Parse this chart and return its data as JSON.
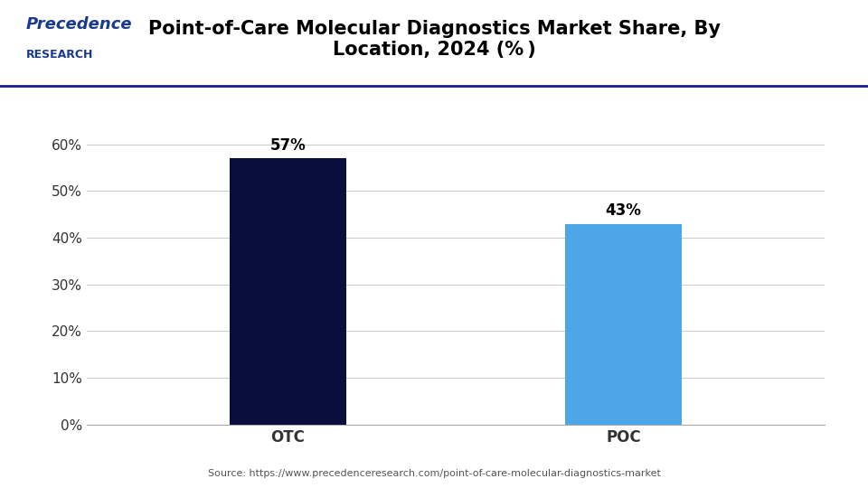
{
  "title": "Point-of-Care Molecular Diagnostics Market Share, By\nLocation, 2024 (% )",
  "categories": [
    "OTC",
    "POC"
  ],
  "values": [
    57,
    43
  ],
  "bar_colors": [
    "#0a0e3d",
    "#4da6e8"
  ],
  "ylim": [
    0,
    70
  ],
  "yticks": [
    0,
    10,
    20,
    30,
    40,
    50,
    60
  ],
  "ytick_labels": [
    "0%",
    "10%",
    "20%",
    "30%",
    "40%",
    "50%",
    "60%"
  ],
  "bar_labels": [
    "57%",
    "43%"
  ],
  "background_color": "#ffffff",
  "grid_color": "#cccccc",
  "source_text": "Source: https://www.precedenceresearch.com/point-of-care-molecular-diagnostics-market",
  "title_fontsize": 15,
  "tick_fontsize": 11,
  "label_fontsize": 12,
  "annotation_fontsize": 12,
  "header_line_color": "#1a1a8c",
  "bar_width": 0.35,
  "logo_text_precedence": "Precedence",
  "logo_text_research": "RESEARCH"
}
